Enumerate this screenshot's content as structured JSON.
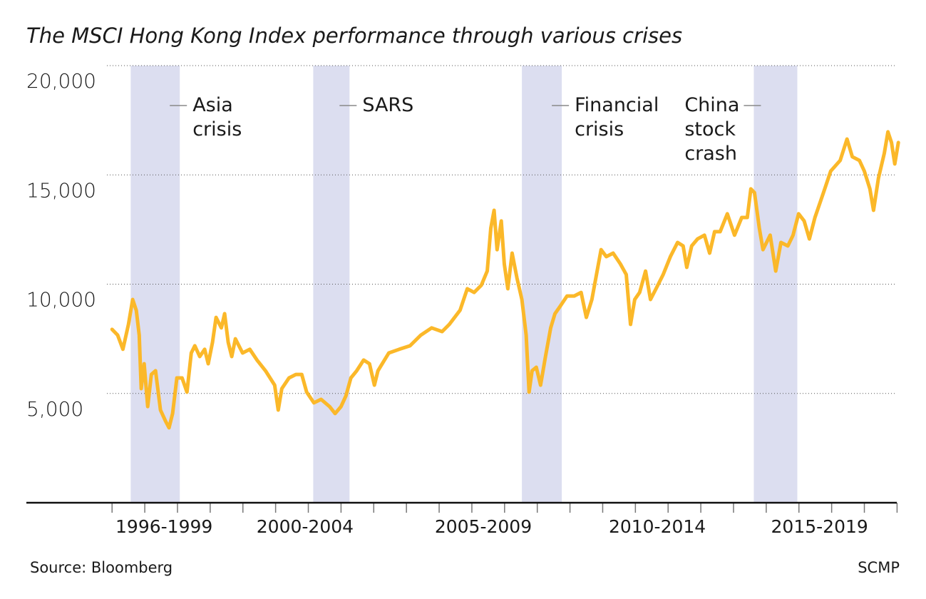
{
  "chart_data": {
    "type": "line",
    "title": "The MSCI Hong Kong Index performance through various crises",
    "source": "Source: Bloomberg",
    "credit": "SCMP",
    "xlim": [
      1993.38,
      2020.1
    ],
    "ylim": [
      0,
      20000
    ],
    "yticks": [
      {
        "value": 5000,
        "label": "5,000"
      },
      {
        "value": 10000,
        "label": "10,000"
      },
      {
        "value": 15000,
        "label": "15,000"
      },
      {
        "value": 20000,
        "label": "20,000"
      }
    ],
    "xticks": [
      1996,
      1997,
      1998,
      1999,
      2000,
      2001,
      2002,
      2003,
      2004,
      2005,
      2006,
      2007,
      2008,
      2009,
      2010,
      2011,
      2012,
      2013,
      2014,
      2015,
      2016,
      2017,
      2018,
      2019,
      2020
    ],
    "x_labels": [
      {
        "value": 1997.59,
        "label": "1996-1999"
      },
      {
        "value": 2001.9,
        "label": "2000-2004"
      },
      {
        "value": 2007.35,
        "label": "2005-2009"
      },
      {
        "value": 2012.67,
        "label": "2010-2014"
      },
      {
        "value": 2017.63,
        "label": "2015-2019"
      }
    ],
    "grid": true,
    "shaded_periods": [
      {
        "label": "Asia crisis",
        "from": 1996.57,
        "to": 1998.07,
        "label_side": "right"
      },
      {
        "label": "SARS",
        "from": 2002.15,
        "to": 2003.26,
        "label_side": "right"
      },
      {
        "label": "Financial crisis",
        "from": 2008.53,
        "to": 2009.75,
        "label_side": "right"
      },
      {
        "label": "China stock crash",
        "from": 2015.62,
        "to": 2016.95,
        "label_side": "left"
      }
    ],
    "shade_color": "#dcdef0",
    "series": [
      {
        "color": "#fbb829",
        "x": [
          1996.0,
          1996.17,
          1996.33,
          1996.5,
          1996.63,
          1996.74,
          1996.83,
          1996.89,
          1996.98,
          1997.09,
          1997.2,
          1997.33,
          1997.48,
          1997.63,
          1997.74,
          1997.85,
          1997.98,
          1998.14,
          1998.29,
          1998.42,
          1998.53,
          1998.68,
          1998.83,
          1998.94,
          1999.07,
          1999.18,
          1999.34,
          1999.44,
          1999.55,
          1999.66,
          1999.77,
          1999.99,
          2000.21,
          2000.43,
          2000.69,
          2000.97,
          2001.08,
          2001.19,
          2001.41,
          2001.62,
          2001.8,
          2001.95,
          2002.17,
          2002.39,
          2002.65,
          2002.82,
          2003.0,
          2003.15,
          2003.3,
          2003.48,
          2003.69,
          2003.87,
          2004.02,
          2004.13,
          2004.46,
          2004.78,
          2005.11,
          2005.44,
          2005.77,
          2006.09,
          2006.31,
          2006.64,
          2006.86,
          2007.07,
          2007.29,
          2007.47,
          2007.58,
          2007.68,
          2007.77,
          2007.9,
          2007.99,
          2008.1,
          2008.23,
          2008.38,
          2008.53,
          2008.66,
          2008.75,
          2008.84,
          2008.97,
          2009.1,
          2009.25,
          2009.41,
          2009.54,
          2009.69,
          2009.91,
          2010.13,
          2010.34,
          2010.5,
          2010.67,
          2010.85,
          2010.95,
          2011.11,
          2011.32,
          2011.54,
          2011.72,
          2011.85,
          2011.98,
          2012.13,
          2012.31,
          2012.46,
          2012.63,
          2012.85,
          2013.07,
          2013.29,
          2013.46,
          2013.57,
          2013.72,
          2013.9,
          2014.11,
          2014.27,
          2014.42,
          2014.59,
          2014.81,
          2015.03,
          2015.25,
          2015.42,
          2015.53,
          2015.64,
          2015.79,
          2015.9,
          2016.12,
          2016.29,
          2016.45,
          2016.66,
          2016.82,
          2016.99,
          2017.16,
          2017.32,
          2017.49,
          2017.75,
          2017.97,
          2018.26,
          2018.47,
          2018.63,
          2018.85,
          2019.0,
          2019.17,
          2019.28,
          2019.43,
          2019.61,
          2019.72,
          2019.83,
          2019.93,
          2020.04
        ],
        "values": [
          7930,
          7670,
          7020,
          8160,
          9300,
          8800,
          7670,
          5220,
          6360,
          4400,
          5870,
          6040,
          4240,
          3750,
          3430,
          4080,
          5710,
          5710,
          5060,
          6850,
          7180,
          6690,
          7020,
          6360,
          7340,
          8480,
          8000,
          8650,
          7340,
          6690,
          7500,
          6850,
          7020,
          6530,
          6040,
          5380,
          4240,
          5220,
          5710,
          5870,
          5870,
          5060,
          4570,
          4730,
          4400,
          4080,
          4400,
          4890,
          5710,
          6040,
          6530,
          6360,
          5380,
          6040,
          6850,
          7020,
          7180,
          7670,
          8000,
          7830,
          8160,
          8810,
          9790,
          9620,
          9950,
          10600,
          12560,
          13380,
          11580,
          12890,
          10930,
          9790,
          11420,
          10280,
          9300,
          7670,
          5060,
          6040,
          6200,
          5380,
          6690,
          8000,
          8650,
          8970,
          9460,
          9460,
          9620,
          8480,
          9300,
          10770,
          11580,
          11260,
          11420,
          10930,
          10440,
          8160,
          9300,
          9620,
          10600,
          9300,
          9790,
          10440,
          11260,
          11910,
          11750,
          10770,
          11750,
          12070,
          12240,
          11420,
          12400,
          12400,
          13220,
          12240,
          13050,
          13050,
          14360,
          14190,
          12560,
          11580,
          12240,
          10600,
          11910,
          11750,
          12240,
          13220,
          12890,
          12070,
          13050,
          14190,
          15170,
          15660,
          16640,
          15830,
          15660,
          15170,
          14360,
          13380,
          14850,
          15990,
          16970,
          16480,
          15500,
          16480
        ]
      }
    ]
  }
}
